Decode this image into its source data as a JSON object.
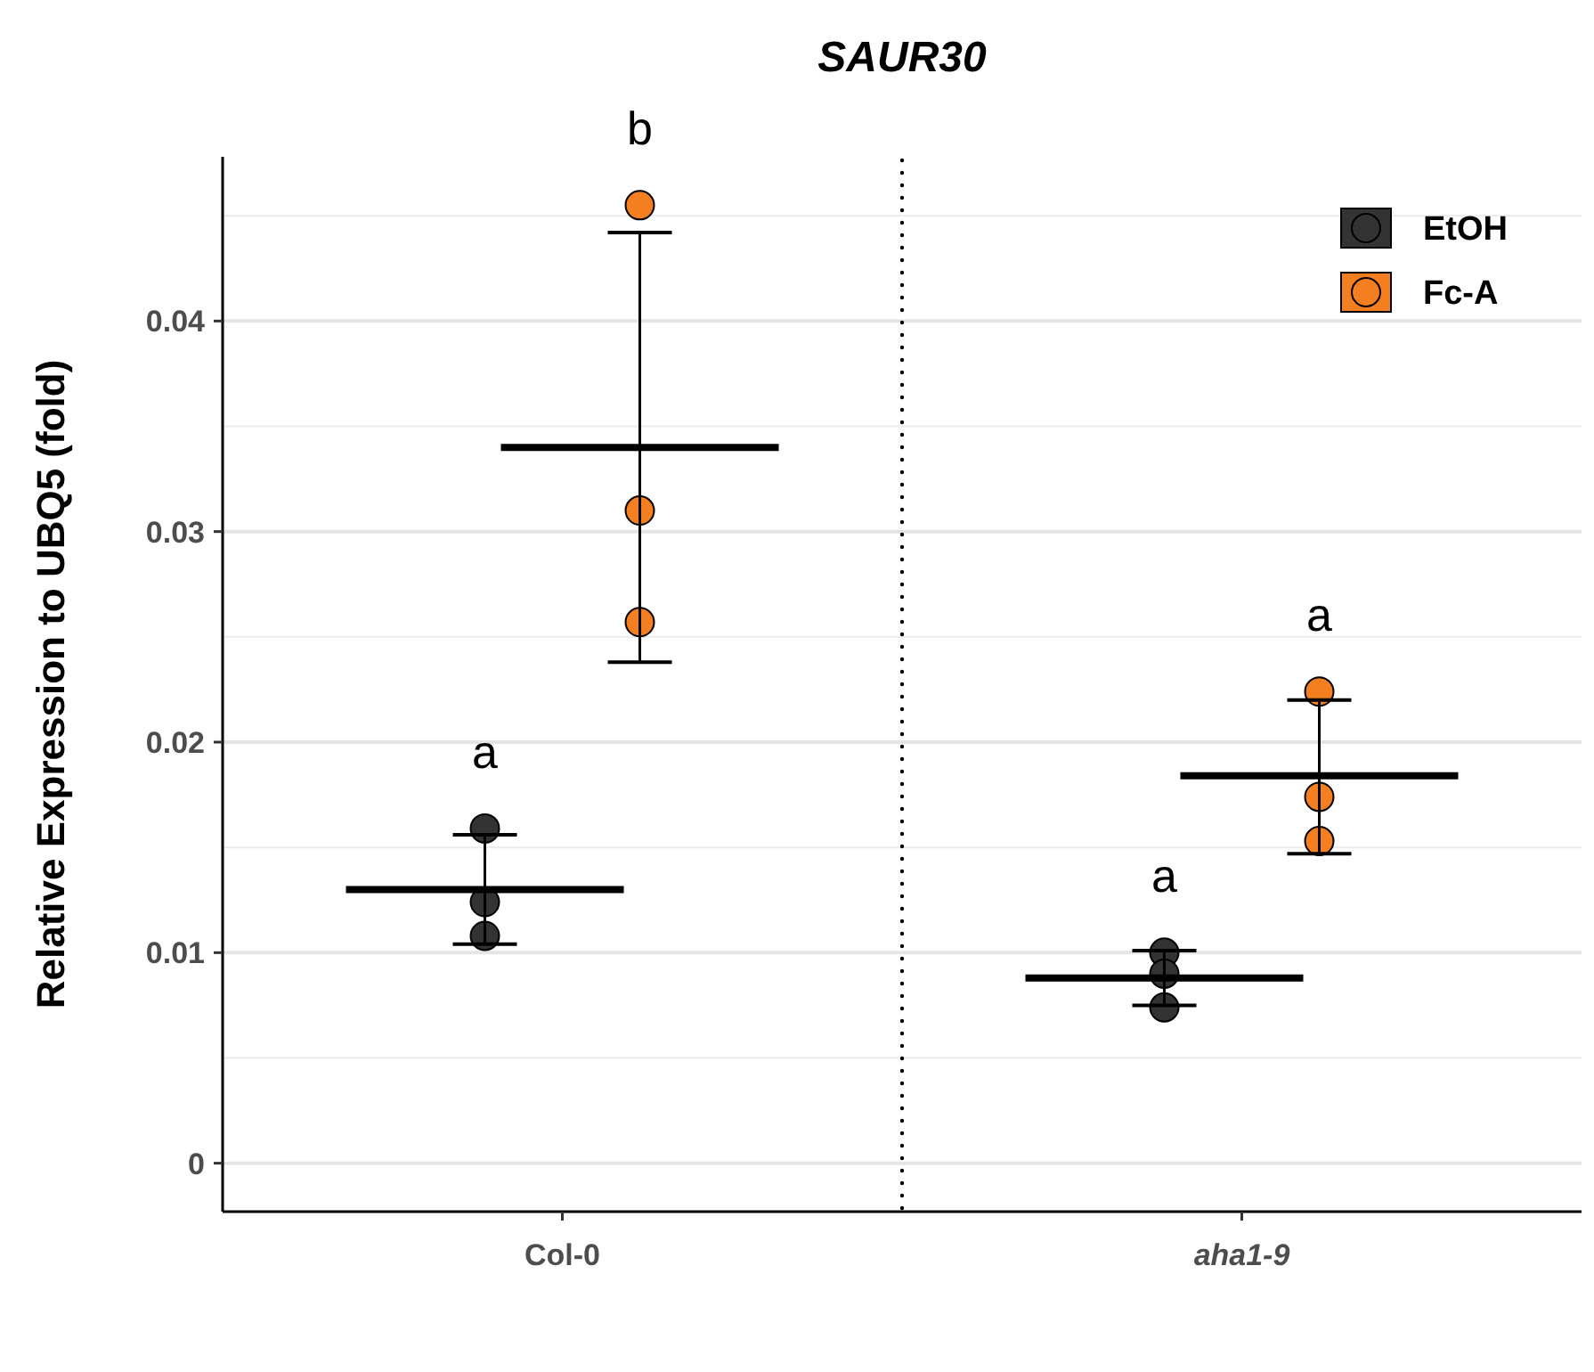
{
  "chart_data": {
    "type": "scatter",
    "title": "SAUR30",
    "ylabel": "Relative Expression to UBQ5 (fold)",
    "categories": [
      "Col-0",
      "aha1-9"
    ],
    "ylim": [
      -0.0023,
      0.0478
    ],
    "yticks": [
      0,
      0.01,
      0.02,
      0.03,
      0.04
    ],
    "grid": "y",
    "legend": "top right",
    "marker": "circle",
    "series": [
      {
        "name": "EtOH",
        "color": "#333333",
        "x": [
          "Col-0",
          "Col-0",
          "Col-0",
          "aha1-9",
          "aha1-9",
          "aha1-9"
        ],
        "values": [
          0.0159,
          0.0124,
          0.0108,
          0.01,
          0.009,
          0.0074
        ],
        "value_labels": [
          "a",
          null,
          null,
          "a",
          null,
          null
        ]
      },
      {
        "name": "Fc-A",
        "color": "#f47f20",
        "x": [
          "Col-0",
          "Col-0",
          "Col-0",
          "aha1-9",
          "aha1-9",
          "aha1-9"
        ],
        "values": [
          0.0455,
          0.031,
          0.0257,
          0.0224,
          0.0174,
          0.0153
        ],
        "value_labels": [
          "b",
          null,
          null,
          "a",
          null,
          null
        ]
      },
      {
        "type": "box",
        "color": "#000000",
        "boxes": [
          {
            "low": 0.0104,
            "q1": 0.013,
            "median": 0.013,
            "q3": 0.013,
            "high": 0.0156
          },
          {
            "low": 0.0075,
            "q1": 0.0088,
            "median": 0.0088,
            "q3": 0.0088,
            "high": 0.0101
          }
        ]
      },
      {
        "type": "box",
        "color": "#000000",
        "boxes": [
          {
            "low": 0.0238,
            "q1": 0.034,
            "median": 0.034,
            "q3": 0.034,
            "high": 0.0442
          },
          {
            "low": 0.0147,
            "q1": 0.0184,
            "median": 0.0184,
            "q3": 0.0184,
            "high": 0.022
          }
        ]
      }
    ]
  }
}
